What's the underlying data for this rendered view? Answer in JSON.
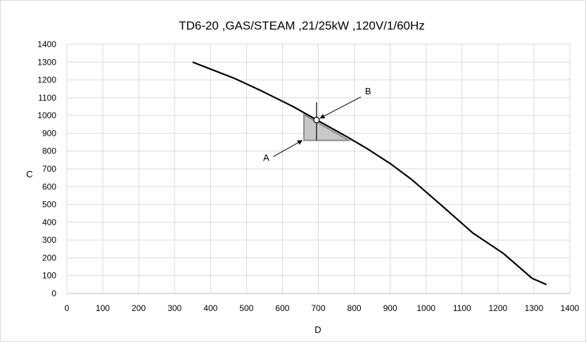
{
  "chart_data": {
    "type": "line",
    "title": "TD6-20 ,GAS/STEAM ,21/25kW ,120V/1/60Hz",
    "xlabel": "D",
    "ylabel": "C",
    "xlim": [
      0,
      1400
    ],
    "ylim": [
      0,
      1400
    ],
    "x_ticks": [
      "0",
      "100",
      "200",
      "300",
      "400",
      "500",
      "600",
      "700",
      "800",
      "900",
      "1000",
      "1100",
      "1200",
      "1300",
      "1400"
    ],
    "y_ticks": [
      "0",
      "100",
      "200",
      "300",
      "400",
      "500",
      "600",
      "700",
      "800",
      "900",
      "1000",
      "1100",
      "1200",
      "1300",
      "1400"
    ],
    "grid": true,
    "legend": "none",
    "series": [
      {
        "color": "#000000",
        "points": [
          [
            350,
            1300
          ],
          [
            465,
            1210
          ],
          [
            540,
            1140
          ],
          [
            630,
            1050
          ],
          [
            700,
            970
          ],
          [
            780,
            880
          ],
          [
            835,
            815
          ],
          [
            900,
            730
          ],
          [
            960,
            640
          ],
          [
            1040,
            500
          ],
          [
            1130,
            340
          ],
          [
            1215,
            225
          ],
          [
            1295,
            85
          ],
          [
            1335,
            50
          ]
        ]
      }
    ],
    "shaded_region": {
      "color": "#c8c8c8",
      "stroke": "#8c8c8c",
      "points": [
        [
          660,
          1005
        ],
        [
          660,
          860
        ],
        [
          785,
          860
        ]
      ]
    },
    "operating_point": {
      "x": 695,
      "y": 975,
      "crosshair_y": [
        860,
        1075
      ]
    },
    "annotations": [
      {
        "text": "A",
        "label_x": 555,
        "label_y": 745,
        "arrow_to_x": 655,
        "arrow_to_y": 860
      },
      {
        "text": "B",
        "label_x": 830,
        "label_y": 1120,
        "arrow_to_x": 705,
        "arrow_to_y": 985
      }
    ]
  }
}
